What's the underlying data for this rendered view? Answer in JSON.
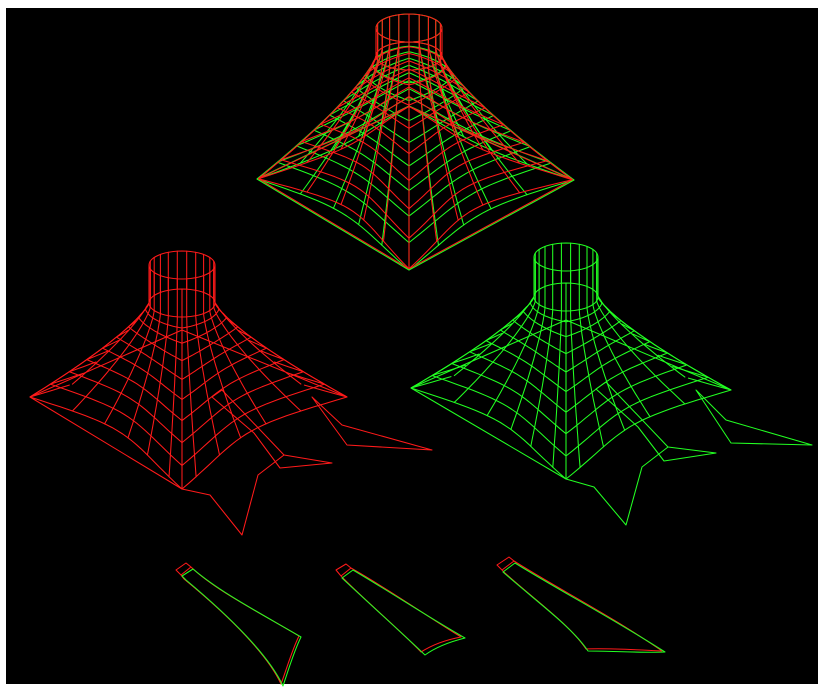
{
  "viewport": {
    "background": "#000000"
  },
  "colors": {
    "red": "#ff1a1a",
    "green": "#22ff22",
    "yellow": "#d2e61a",
    "frame": "#ffffff"
  },
  "figures": [
    {
      "id": "combined-tent",
      "layers": [
        "red",
        "green"
      ]
    },
    {
      "id": "red-tent-partial",
      "layers": [
        "red"
      ]
    },
    {
      "id": "green-tent-partial",
      "layers": [
        "green"
      ]
    }
  ],
  "strips": [
    {
      "id": "strip-1"
    },
    {
      "id": "strip-2"
    },
    {
      "id": "strip-3"
    }
  ]
}
